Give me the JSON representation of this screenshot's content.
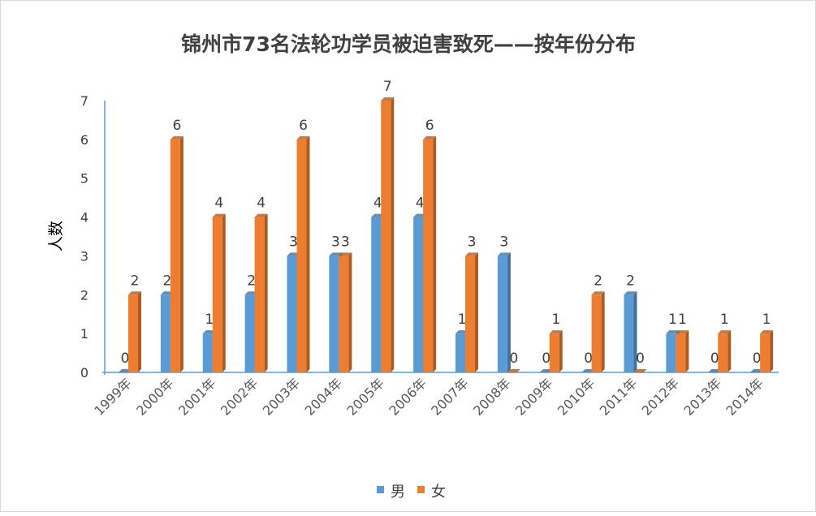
{
  "chart_data": {
    "type": "bar",
    "title": "锦州市73名法轮功学员被迫害致死——按年份分布",
    "xlabel": "",
    "ylabel": "人数",
    "ylim": [
      0,
      7
    ],
    "yticks": [
      "0",
      "1",
      "2",
      "3",
      "4",
      "5",
      "6",
      "7"
    ],
    "grid": false,
    "legend_position": "bottom",
    "categories": [
      "1999年",
      "2000年",
      "2001年",
      "2002年",
      "2003年",
      "2004年",
      "2005年",
      "2006年",
      "2007年",
      "2008年",
      "2009年",
      "2010年",
      "2011年",
      "2012年",
      "2013年",
      "2014年"
    ],
    "series": [
      {
        "name": "男",
        "color": "#5b9bd5",
        "side_color": "#41719c",
        "values": [
          0,
          2,
          1,
          2,
          3,
          3,
          4,
          4,
          1,
          3,
          0,
          0,
          2,
          1,
          0,
          0
        ]
      },
      {
        "name": "女",
        "color": "#ed7d31",
        "side_color": "#ae5a21",
        "values": [
          2,
          6,
          4,
          4,
          6,
          3,
          7,
          6,
          3,
          0,
          1,
          2,
          0,
          1,
          1,
          1
        ]
      }
    ]
  }
}
